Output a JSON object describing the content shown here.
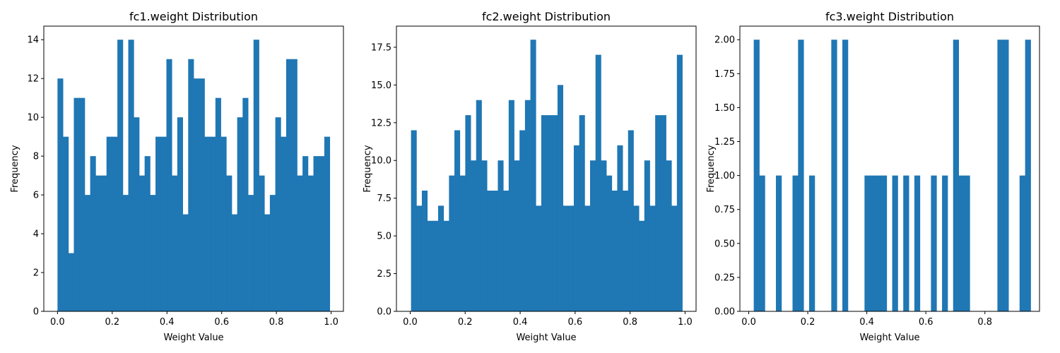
{
  "chart_data": [
    {
      "type": "bar",
      "title": "fc1.weight Distribution",
      "xlabel": "Weight Value",
      "ylabel": "Frequency",
      "xlim": [
        -0.05,
        1.045
      ],
      "ylim": [
        0,
        14.7
      ],
      "xticks": [
        0.0,
        0.2,
        0.4,
        0.6,
        0.8,
        1.0
      ],
      "yticks": [
        0,
        2,
        4,
        6,
        8,
        10,
        12,
        14
      ],
      "ytick_labels": [
        "0",
        "2",
        "4",
        "6",
        "8",
        "10",
        "12",
        "14"
      ],
      "bins": {
        "start": 0.0,
        "end": 0.995,
        "count": 50
      },
      "values": [
        12,
        9,
        3,
        11,
        11,
        6,
        8,
        7,
        7,
        9,
        9,
        14,
        6,
        14,
        10,
        7,
        8,
        6,
        9,
        9,
        13,
        7,
        10,
        5,
        13,
        12,
        12,
        9,
        9,
        11,
        9,
        7,
        5,
        10,
        11,
        6,
        14,
        7,
        5,
        6,
        10,
        9,
        13,
        13,
        7,
        8,
        7,
        8,
        8,
        9
      ],
      "color": "#1f77b4"
    },
    {
      "type": "bar",
      "title": "fc2.weight Distribution",
      "xlabel": "Weight Value",
      "ylabel": "Frequency",
      "xlim": [
        -0.05,
        1.04
      ],
      "ylim": [
        0,
        18.9
      ],
      "xticks": [
        0.0,
        0.2,
        0.4,
        0.6,
        0.8,
        1.0
      ],
      "yticks": [
        0,
        2.5,
        5,
        7.5,
        10,
        12.5,
        15,
        17.5
      ],
      "ytick_labels": [
        "0.0",
        "2.5",
        "5.0",
        "7.5",
        "10.0",
        "12.5",
        "15.0",
        "17.5"
      ],
      "bins": {
        "start": 0.003,
        "end": 0.99,
        "count": 50
      },
      "values": [
        12,
        7,
        8,
        6,
        6,
        7,
        6,
        9,
        12,
        9,
        13,
        10,
        14,
        10,
        8,
        8,
        10,
        8,
        14,
        10,
        12,
        14,
        18,
        7,
        13,
        13,
        13,
        15,
        7,
        7,
        11,
        13,
        7,
        10,
        17,
        10,
        9,
        8,
        11,
        8,
        12,
        7,
        6,
        10,
        7,
        13,
        13,
        10,
        7,
        17
      ],
      "color": "#1f77b4"
    },
    {
      "type": "bar",
      "title": "fc3.weight Distribution",
      "xlabel": "Weight Value",
      "ylabel": "Frequency",
      "xlim": [
        -0.03,
        0.985
      ],
      "ylim": [
        0,
        2.1
      ],
      "xticks": [
        0.0,
        0.2,
        0.4,
        0.6,
        0.8
      ],
      "yticks": [
        0,
        0.25,
        0.5,
        0.75,
        1.0,
        1.25,
        1.5,
        1.75,
        2.0
      ],
      "ytick_labels": [
        "0.00",
        "0.25",
        "0.50",
        "0.75",
        "1.00",
        "1.25",
        "1.50",
        "1.75",
        "2.00"
      ],
      "bins": {
        "start": 0.017,
        "end": 0.955,
        "count": 50
      },
      "values": [
        2,
        1,
        0,
        0,
        1,
        0,
        0,
        1,
        2,
        0,
        1,
        0,
        0,
        0,
        2,
        0,
        2,
        0,
        0,
        0,
        1,
        1,
        1,
        1,
        0,
        1,
        0,
        1,
        0,
        1,
        0,
        0,
        1,
        0,
        1,
        0,
        2,
        1,
        1,
        0,
        0,
        0,
        0,
        0,
        2,
        2,
        0,
        0,
        1,
        2
      ],
      "color": "#1f77b4"
    }
  ]
}
